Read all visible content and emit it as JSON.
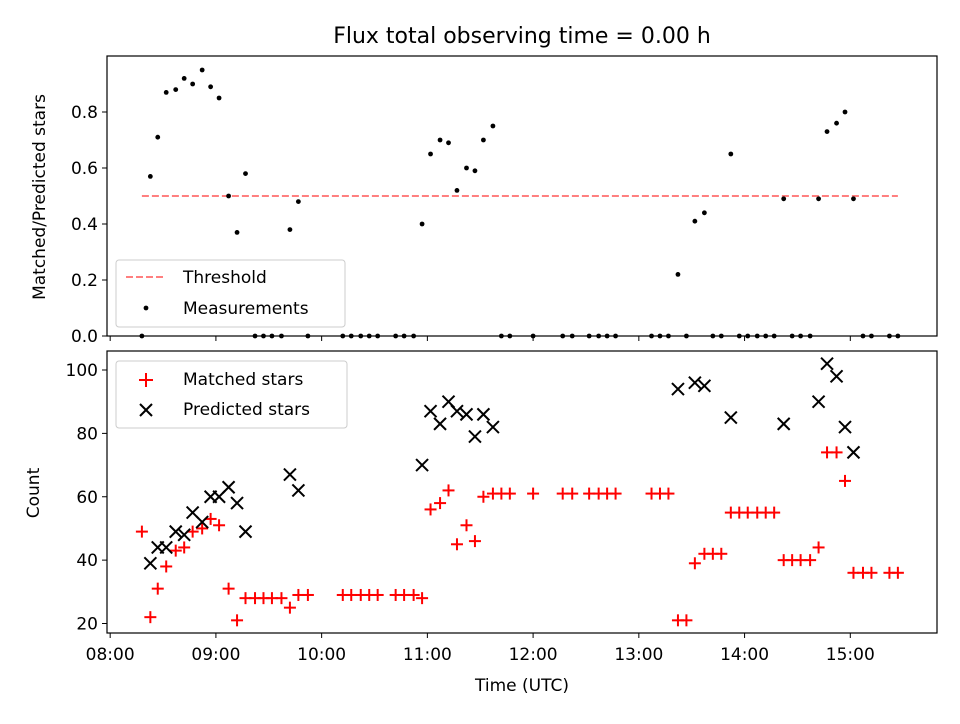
{
  "figure": {
    "title": "Flux total observing time = 0.00 h",
    "xlabel": "Time (UTC)"
  },
  "colors": {
    "measurement": "#000000",
    "threshold": "#ff7f7f",
    "matched": "#ff0000",
    "predicted": "#000000"
  },
  "chart_data": [
    {
      "type": "scatter",
      "panel": "top",
      "title": "Flux total observing time = 0.00 h",
      "ylabel": "Matched/Predicted stars",
      "xlabel": "",
      "xlim_hours": [
        7.97,
        15.82
      ],
      "ylim": [
        0,
        1.0
      ],
      "yticks": [
        0.0,
        0.2,
        0.4,
        0.6,
        0.8
      ],
      "ytick_labels": [
        "0.0",
        "0.2",
        "0.4",
        "0.6",
        "0.8"
      ],
      "legend_position": "lower-left",
      "legend": [
        "Threshold",
        "Measurements"
      ],
      "threshold": {
        "name": "Threshold",
        "value": 0.5,
        "x_range": [
          8.3,
          15.45
        ]
      },
      "series": [
        {
          "name": "Measurements",
          "marker": "dot",
          "x": [
            8.3,
            8.38,
            8.45,
            8.53,
            8.62,
            8.7,
            8.78,
            8.87,
            8.95,
            9.03,
            9.12,
            9.2,
            9.28,
            9.37,
            9.45,
            9.53,
            9.62,
            9.7,
            9.78,
            9.87,
            10.2,
            10.28,
            10.37,
            10.45,
            10.53,
            10.7,
            10.78,
            10.87,
            10.95,
            11.03,
            11.12,
            11.2,
            11.28,
            11.37,
            11.45,
            11.53,
            11.62,
            11.7,
            11.78,
            12.0,
            12.28,
            12.37,
            12.53,
            12.62,
            12.7,
            12.78,
            13.12,
            13.2,
            13.28,
            13.37,
            13.45,
            13.53,
            13.62,
            13.7,
            13.78,
            13.87,
            13.95,
            14.03,
            14.12,
            14.2,
            14.28,
            14.37,
            14.45,
            14.53,
            14.62,
            14.7,
            14.78,
            14.87,
            14.95,
            15.03,
            15.12,
            15.2,
            15.37,
            15.45
          ],
          "y": [
            0.0,
            0.57,
            0.71,
            0.87,
            0.88,
            0.92,
            0.9,
            0.95,
            0.89,
            0.85,
            0.5,
            0.37,
            0.58,
            0.0,
            0.0,
            0.0,
            0.0,
            0.38,
            0.48,
            0.0,
            0.0,
            0.0,
            0.0,
            0.0,
            0.0,
            0.0,
            0.0,
            0.0,
            0.4,
            0.65,
            0.7,
            0.69,
            0.52,
            0.6,
            0.59,
            0.7,
            0.75,
            0.0,
            0.0,
            0.0,
            0.0,
            0.0,
            0.0,
            0.0,
            0.0,
            0.0,
            0.0,
            0.0,
            0.0,
            0.22,
            0.0,
            0.41,
            0.44,
            0.0,
            0.0,
            0.65,
            0.0,
            0.0,
            0.0,
            0.0,
            0.0,
            0.49,
            0.0,
            0.0,
            0.0,
            0.49,
            0.73,
            0.76,
            0.8,
            0.49,
            0.0,
            0.0,
            0.0,
            0.0
          ]
        }
      ]
    },
    {
      "type": "scatter",
      "panel": "bottom",
      "ylabel": "Count",
      "xlabel": "Time (UTC)",
      "xlim_hours": [
        7.97,
        15.82
      ],
      "ylim": [
        17,
        106
      ],
      "yticks": [
        20,
        40,
        60,
        80,
        100
      ],
      "ytick_labels": [
        "20",
        "40",
        "60",
        "80",
        "100"
      ],
      "xticks_hours": [
        8,
        9,
        10,
        11,
        12,
        13,
        14,
        15
      ],
      "xtick_labels": [
        "08:00",
        "09:00",
        "10:00",
        "11:00",
        "12:00",
        "13:00",
        "14:00",
        "15:00"
      ],
      "legend_position": "upper-left",
      "legend": [
        "Matched stars",
        "Predicted stars"
      ],
      "series": [
        {
          "name": "Matched stars",
          "marker": "plus",
          "x": [
            8.3,
            8.38,
            8.45,
            8.53,
            8.62,
            8.7,
            8.78,
            8.87,
            8.95,
            9.03,
            9.12,
            9.2,
            9.28,
            9.37,
            9.45,
            9.53,
            9.62,
            9.7,
            9.78,
            9.87,
            10.2,
            10.28,
            10.37,
            10.45,
            10.53,
            10.7,
            10.78,
            10.87,
            10.95,
            11.03,
            11.12,
            11.2,
            11.28,
            11.37,
            11.45,
            11.53,
            11.62,
            11.7,
            11.78,
            12.0,
            12.28,
            12.37,
            12.53,
            12.62,
            12.7,
            12.78,
            13.12,
            13.2,
            13.28,
            13.37,
            13.45,
            13.53,
            13.62,
            13.7,
            13.78,
            13.87,
            13.95,
            14.03,
            14.12,
            14.2,
            14.28,
            14.37,
            14.45,
            14.53,
            14.62,
            14.7,
            14.78,
            14.87,
            14.95,
            15.03,
            15.12,
            15.2,
            15.37,
            15.45
          ],
          "y": [
            49,
            22,
            31,
            38,
            43,
            44,
            49,
            50,
            53,
            51,
            31,
            21,
            28,
            28,
            28,
            28,
            28,
            25,
            29,
            29,
            29,
            29,
            29,
            29,
            29,
            29,
            29,
            29,
            28,
            56,
            58,
            62,
            45,
            51,
            46,
            60,
            61,
            61,
            61,
            61,
            61,
            61,
            61,
            61,
            61,
            61,
            61,
            61,
            61,
            21,
            21,
            39,
            42,
            42,
            42,
            55,
            55,
            55,
            55,
            55,
            55,
            40,
            40,
            40,
            40,
            44,
            74,
            74,
            65,
            36,
            36,
            36,
            36,
            36
          ]
        },
        {
          "name": "Predicted stars",
          "marker": "x",
          "x": [
            8.38,
            8.45,
            8.53,
            8.62,
            8.7,
            8.78,
            8.87,
            8.95,
            9.03,
            9.12,
            9.2,
            9.28,
            9.7,
            9.78,
            10.95,
            11.03,
            11.12,
            11.2,
            11.28,
            11.37,
            11.45,
            11.53,
            11.62,
            13.37,
            13.53,
            13.62,
            13.87,
            14.37,
            14.7,
            14.78,
            14.87,
            14.95,
            15.03
          ],
          "y": [
            39,
            44,
            44,
            49,
            48,
            55,
            52,
            60,
            60,
            63,
            58,
            49,
            67,
            62,
            70,
            87,
            83,
            90,
            87,
            86,
            79,
            86,
            82,
            94,
            96,
            95,
            85,
            83,
            90,
            102,
            98,
            82,
            74
          ]
        }
      ]
    }
  ]
}
